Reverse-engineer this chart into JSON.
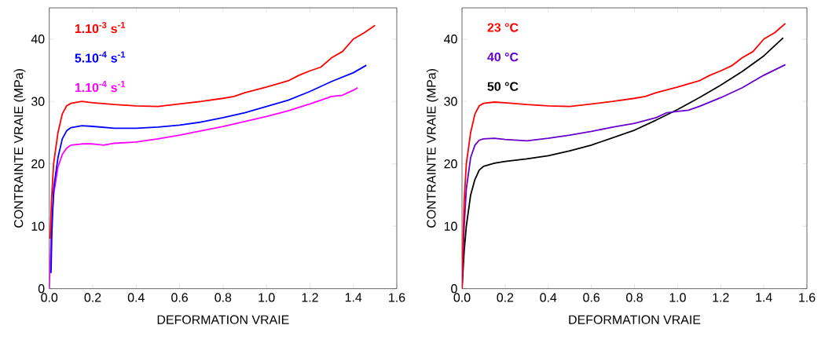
{
  "chart_data": [
    {
      "type": "line",
      "xlabel": "DEFORMATION VRAIE",
      "ylabel": "CONTRAINTE VRAIE (MPa)",
      "xlim": [
        0,
        1.6
      ],
      "ylim": [
        0,
        45
      ],
      "xticks": [
        {
          "value": 0,
          "label": "0.0"
        },
        {
          "value": 0.2,
          "label": "0.2"
        },
        {
          "value": 0.4,
          "label": "0.4"
        },
        {
          "value": 0.6,
          "label": "0.6"
        },
        {
          "value": 0.8,
          "label": "0.8"
        },
        {
          "value": 1.0,
          "label": "1.0"
        },
        {
          "value": 1.2,
          "label": "1.2"
        },
        {
          "value": 1.4,
          "label": "1.4"
        },
        {
          "value": 1.6,
          "label": "1.6"
        }
      ],
      "yticks": [
        0,
        10,
        20,
        30,
        40
      ],
      "grid": false,
      "marker": "none",
      "line_style": "solid",
      "series": [
        {
          "name": "**1.10$^{-3}$ s$^{-1}$**",
          "color": "#ff0000",
          "x": [
            0.004,
            0.01,
            0.02,
            0.04,
            0.06,
            0.08,
            0.1,
            0.15,
            0.2,
            0.3,
            0.4,
            0.5,
            0.6,
            0.7,
            0.8,
            0.85,
            0.9,
            1.0,
            1.1,
            1.15,
            1.2,
            1.25,
            1.3,
            1.35,
            1.4,
            1.45,
            1.5
          ],
          "values": [
            8,
            14,
            20,
            25,
            28,
            29.3,
            29.7,
            30,
            29.8,
            29.5,
            29.3,
            29.2,
            29.6,
            30,
            30.5,
            30.8,
            31.4,
            32.3,
            33.3,
            34.2,
            34.9,
            35.5,
            37,
            38,
            40,
            41,
            42.2
          ]
        },
        {
          "name": "**5.10$^{-4}$ s$^{-1}$**",
          "color": "#0000ff",
          "x": [
            0.008,
            0.012,
            0.02,
            0.04,
            0.06,
            0.08,
            0.1,
            0.15,
            0.2,
            0.3,
            0.4,
            0.5,
            0.6,
            0.7,
            0.8,
            0.9,
            1.0,
            1.1,
            1.2,
            1.3,
            1.4,
            1.46
          ],
          "values": [
            2.5,
            9,
            16,
            21,
            24,
            25.3,
            25.8,
            26.1,
            26,
            25.7,
            25.7,
            25.9,
            26.2,
            26.7,
            27.4,
            28.2,
            29.2,
            30.2,
            31.6,
            33.2,
            34.6,
            35.8
          ]
        },
        {
          "name": "**1.10$^{-4}$ s$^{-1}$**",
          "color": "#ff00ff",
          "x": [
            0,
            0.005,
            0.01,
            0.02,
            0.04,
            0.06,
            0.08,
            0.1,
            0.15,
            0.2,
            0.25,
            0.3,
            0.4,
            0.5,
            0.6,
            0.7,
            0.8,
            0.9,
            1.0,
            1.1,
            1.2,
            1.3,
            1.35,
            1.4,
            1.42
          ],
          "values": [
            0,
            5,
            10,
            15,
            19.5,
            21.5,
            22.5,
            23,
            23.2,
            23.2,
            23,
            23.3,
            23.5,
            24,
            24.6,
            25.3,
            26,
            26.8,
            27.6,
            28.5,
            29.6,
            30.8,
            31,
            31.8,
            32.2
          ]
        }
      ]
    },
    {
      "type": "line",
      "xlabel": "DEFORMATION VRAIE",
      "ylabel": "CONTRAINTE VRAIE (MPa)",
      "xlim": [
        0,
        1.6
      ],
      "ylim": [
        0,
        45
      ],
      "xticks": [
        {
          "value": 0,
          "label": "0.0"
        },
        {
          "value": 0.2,
          "label": "0.2"
        },
        {
          "value": 0.4,
          "label": "0.4"
        },
        {
          "value": 0.6,
          "label": "0.6"
        },
        {
          "value": 0.8,
          "label": "0.8"
        },
        {
          "value": 1.0,
          "label": "1.0"
        },
        {
          "value": 1.2,
          "label": "1.2"
        },
        {
          "value": 1.4,
          "label": "1.4"
        },
        {
          "value": 1.6,
          "label": "1.6"
        }
      ],
      "yticks": [
        0,
        10,
        20,
        30,
        40
      ],
      "grid": false,
      "marker": "none",
      "line_style": "solid",
      "series": [
        {
          "name": "**23 °C**",
          "color": "#ff0000",
          "x": [
            0,
            0.005,
            0.01,
            0.02,
            0.04,
            0.06,
            0.08,
            0.1,
            0.15,
            0.2,
            0.3,
            0.4,
            0.5,
            0.6,
            0.7,
            0.8,
            0.85,
            0.9,
            1.0,
            1.1,
            1.15,
            1.2,
            1.25,
            1.3,
            1.35,
            1.4,
            1.45,
            1.5
          ],
          "values": [
            0,
            8,
            14,
            20,
            25,
            28,
            29.3,
            29.7,
            29.9,
            29.8,
            29.5,
            29.3,
            29.2,
            29.6,
            30,
            30.5,
            30.8,
            31.4,
            32.3,
            33.3,
            34.2,
            34.9,
            35.7,
            37,
            38,
            40,
            41,
            42.5
          ]
        },
        {
          "name": "**40 °C**",
          "color": "#6600cc",
          "x": [
            0,
            0.01,
            0.02,
            0.04,
            0.06,
            0.08,
            0.1,
            0.15,
            0.2,
            0.3,
            0.4,
            0.5,
            0.6,
            0.7,
            0.8,
            0.9,
            0.95,
            1.0,
            1.05,
            1.1,
            1.2,
            1.3,
            1.4,
            1.5
          ],
          "values": [
            0,
            10,
            16,
            21,
            23,
            23.8,
            24,
            24.1,
            23.9,
            23.7,
            24.1,
            24.6,
            25.2,
            25.9,
            26.5,
            27.4,
            28.2,
            28.4,
            28.6,
            29.2,
            30.6,
            32.2,
            34.2,
            35.9
          ]
        },
        {
          "name": "**50 °C**",
          "color": "#000000",
          "x": [
            0,
            0.01,
            0.02,
            0.04,
            0.06,
            0.08,
            0.1,
            0.15,
            0.2,
            0.3,
            0.4,
            0.5,
            0.6,
            0.7,
            0.8,
            0.9,
            1.0,
            1.1,
            1.2,
            1.3,
            1.4,
            1.49
          ],
          "values": [
            0,
            6,
            10,
            15,
            17.5,
            19,
            19.6,
            20.1,
            20.4,
            20.8,
            21.3,
            22.1,
            23,
            24.2,
            25.4,
            27,
            28.7,
            30.6,
            32.6,
            34.8,
            37.3,
            40.2
          ]
        }
      ]
    }
  ]
}
